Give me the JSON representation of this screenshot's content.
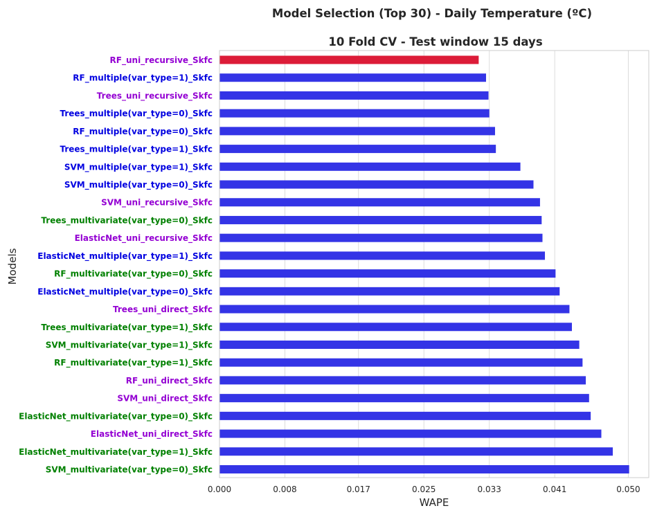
{
  "chart_data": {
    "type": "bar",
    "orientation": "horizontal",
    "title": "Model Selection (Top 30) - Daily Temperature (ºC)",
    "subtitle": "10 Fold CV - Test window 15 days",
    "xlabel": "WAPE",
    "ylabel": "Models",
    "xlim": [
      0,
      0.0525
    ],
    "xticks": [
      0.0,
      0.008,
      0.017,
      0.025,
      0.033,
      0.041,
      0.05
    ],
    "xtick_labels": [
      "0.000",
      "0.008",
      "0.017",
      "0.025",
      "0.033",
      "0.041",
      "0.050"
    ],
    "grid": "vertical",
    "highlight_color": "#dc1c38",
    "bar_color": "#3434e6",
    "label_colors": {
      "uni": "#9400d3",
      "multiple": "#0000e0",
      "multivariate": "#008000"
    },
    "categories": [
      "RF_uni_recursive_Skfc",
      "RF_multiple(var_type=1)_Skfc",
      "Trees_uni_recursive_Skfc",
      "Trees_multiple(var_type=0)_Skfc",
      "RF_multiple(var_type=0)_Skfc",
      "Trees_multiple(var_type=1)_Skfc",
      "SVM_multiple(var_type=1)_Skfc",
      "SVM_multiple(var_type=0)_Skfc",
      "SVM_uni_recursive_Skfc",
      "Trees_multivariate(var_type=0)_Skfc",
      "ElasticNet_uni_recursive_Skfc",
      "ElasticNet_multiple(var_type=1)_Skfc",
      "RF_multivariate(var_type=0)_Skfc",
      "ElasticNet_multiple(var_type=0)_Skfc",
      "Trees_uni_direct_Skfc",
      "Trees_multivariate(var_type=1)_Skfc",
      "SVM_multivariate(var_type=1)_Skfc",
      "RF_multivariate(var_type=1)_Skfc",
      "RF_uni_direct_Skfc",
      "SVM_uni_direct_Skfc",
      "ElasticNet_multivariate(var_type=0)_Skfc",
      "ElasticNet_uni_direct_Skfc",
      "ElasticNet_multivariate(var_type=1)_Skfc",
      "SVM_multivariate(var_type=0)_Skfc"
    ],
    "groups": [
      "uni",
      "multiple",
      "uni",
      "multiple",
      "multiple",
      "multiple",
      "multiple",
      "multiple",
      "uni",
      "multivariate",
      "uni",
      "multiple",
      "multivariate",
      "multiple",
      "uni",
      "multivariate",
      "multivariate",
      "multivariate",
      "uni",
      "uni",
      "multivariate",
      "uni",
      "multivariate",
      "multivariate"
    ],
    "values": [
      0.0317,
      0.0326,
      0.0329,
      0.033,
      0.0337,
      0.0338,
      0.0368,
      0.0384,
      0.0392,
      0.0394,
      0.0395,
      0.0398,
      0.0411,
      0.0416,
      0.0428,
      0.0431,
      0.044,
      0.0444,
      0.0448,
      0.0452,
      0.0454,
      0.0467,
      0.0481,
      0.0501
    ]
  }
}
